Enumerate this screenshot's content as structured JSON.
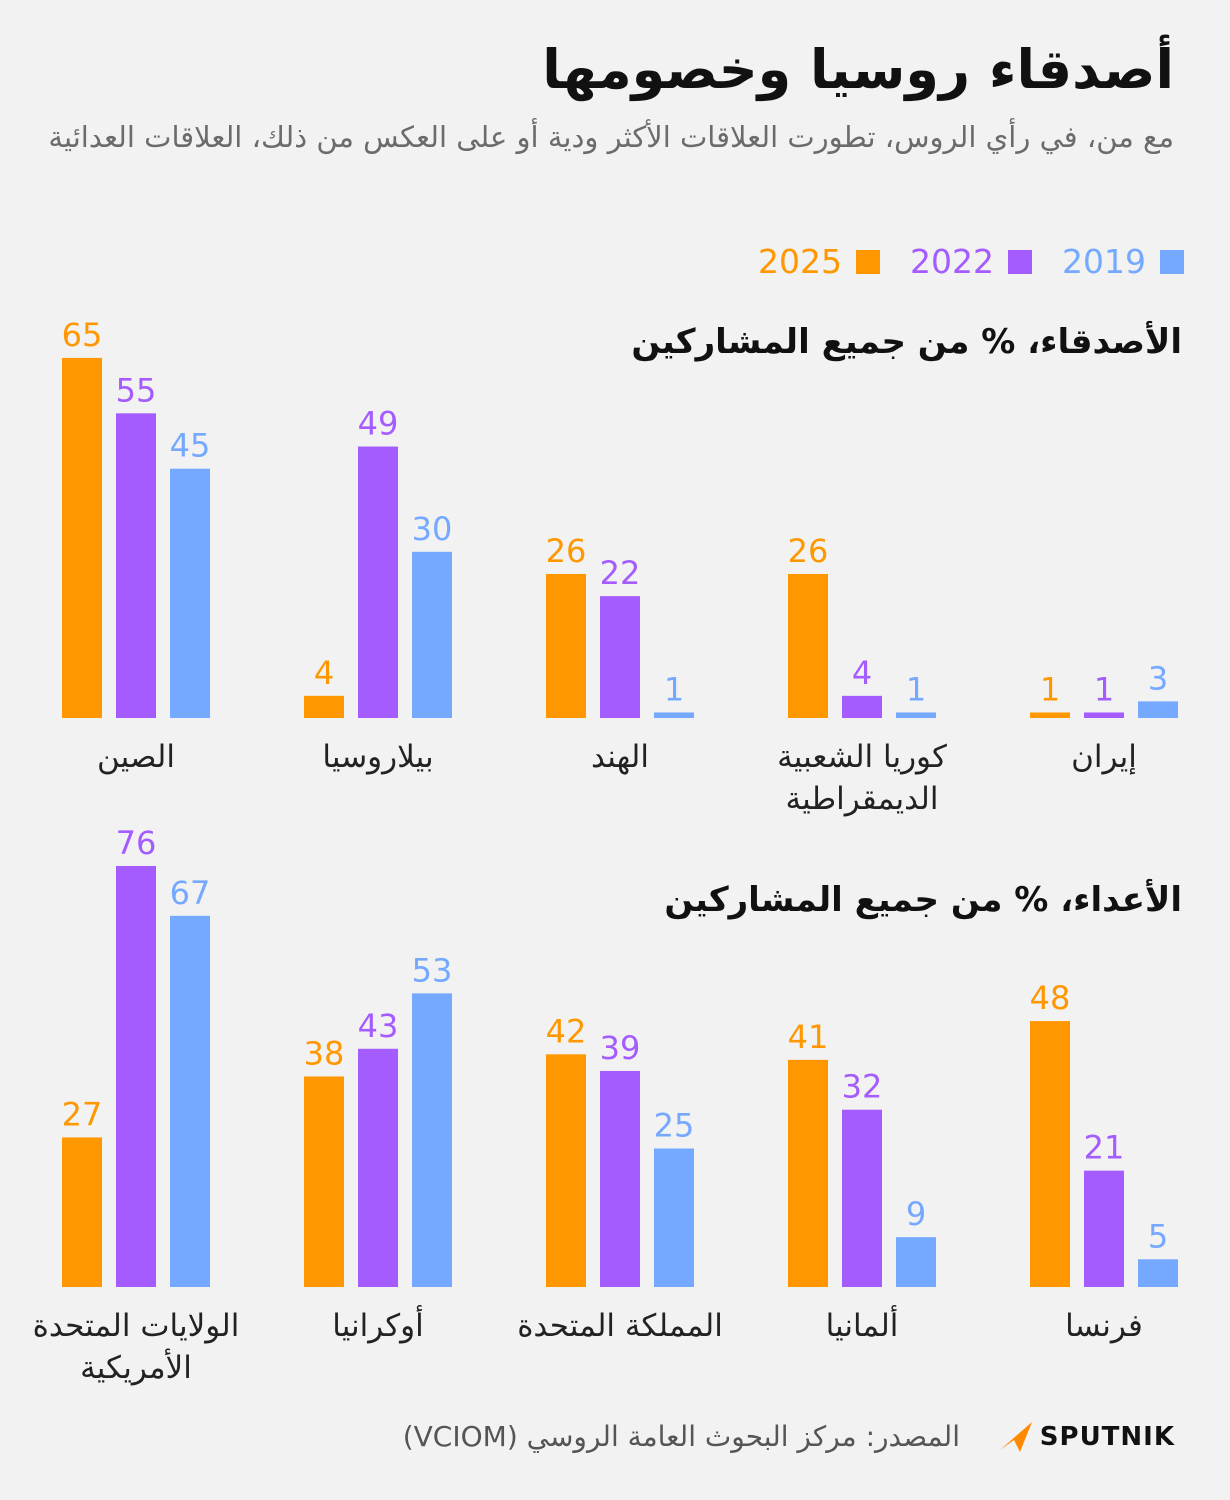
{
  "header": {
    "title": "أصدقاء روسيا وخصومها",
    "subtitle": "مع من، في رأي الروس، تطورت العلاقات الأكثر ودية أو على العكس من ذلك، العلاقات العدائية"
  },
  "chart_data": [
    {
      "type": "bar",
      "title": "الأصدقاء، % من جميع المشاركين",
      "categories": [
        "إيران",
        "كوريا الشعبية الديمقراطية",
        "الهند",
        "بيلاروسيا",
        "الصين"
      ],
      "series": [
        {
          "name": "2025",
          "color": "#ff9800",
          "values": [
            1,
            26,
            26,
            4,
            65
          ]
        },
        {
          "name": "2022",
          "color": "#a45cff",
          "values": [
            1,
            4,
            22,
            49,
            55
          ]
        },
        {
          "name": "2019",
          "color": "#74a9ff",
          "values": [
            3,
            1,
            1,
            30,
            45
          ]
        }
      ]
    },
    {
      "type": "bar",
      "title": "الأعداء، % من جميع المشاركين",
      "categories": [
        "فرنسا",
        "ألمانيا",
        "المملكة المتحدة",
        "أوكرانيا",
        "الولايات المتحدة الأمريكية"
      ],
      "series": [
        {
          "name": "2025",
          "color": "#ff9800",
          "values": [
            48,
            41,
            42,
            38,
            27
          ]
        },
        {
          "name": "2022",
          "color": "#a45cff",
          "values": [
            21,
            32,
            39,
            43,
            76
          ]
        },
        {
          "name": "2019",
          "color": "#74a9ff",
          "values": [
            5,
            9,
            25,
            53,
            67
          ]
        }
      ]
    }
  ],
  "footer": {
    "source": "المصدر: مركز البحوث العامة الروسي (VCIOM)",
    "logo": "SPUTNIK"
  }
}
